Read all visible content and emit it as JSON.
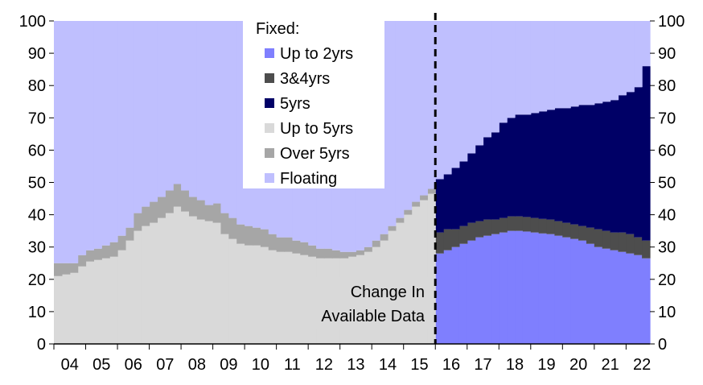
{
  "chart_data": {
    "type": "area",
    "stacked": true,
    "ylim": [
      0,
      100
    ],
    "y_ticks": [
      "0",
      "10",
      "20",
      "30",
      "40",
      "50",
      "60",
      "70",
      "80",
      "90",
      "100"
    ],
    "right_y_ticks": [
      "0",
      "10",
      "20",
      "30",
      "40",
      "50",
      "60",
      "70",
      "80",
      "90",
      "100"
    ],
    "x_tick_labels": [
      "04",
      "05",
      "06",
      "07",
      "08",
      "09",
      "10",
      "11",
      "12",
      "13",
      "14",
      "15",
      "16",
      "17",
      "18",
      "19",
      "20",
      "21",
      "22"
    ],
    "x": [
      2004.0,
      2004.25,
      2004.5,
      2004.75,
      2005.0,
      2005.25,
      2005.5,
      2005.75,
      2006.0,
      2006.25,
      2006.5,
      2006.75,
      2007.0,
      2007.25,
      2007.5,
      2007.75,
      2008.0,
      2008.25,
      2008.5,
      2008.75,
      2009.0,
      2009.25,
      2009.5,
      2009.75,
      2010.0,
      2010.25,
      2010.5,
      2010.75,
      2011.0,
      2011.25,
      2011.5,
      2011.75,
      2012.0,
      2012.25,
      2012.5,
      2012.75,
      2013.0,
      2013.25,
      2013.5,
      2013.75,
      2014.0,
      2014.25,
      2014.5,
      2014.75,
      2015.0,
      2015.25,
      2015.5,
      2015.75,
      2016.0,
      2016.25,
      2016.5,
      2016.75,
      2017.0,
      2017.25,
      2017.5,
      2017.75,
      2018.0,
      2018.25,
      2018.5,
      2018.75,
      2019.0,
      2019.25,
      2019.5,
      2019.75,
      2020.0,
      2020.25,
      2020.5,
      2020.75,
      2021.0,
      2021.25,
      2021.5,
      2021.75,
      2022.0,
      2022.25,
      2022.5
    ],
    "series": [
      {
        "name": "Up to 2yrs",
        "color": "#7f7ffe",
        "values": [
          0,
          0,
          0,
          0,
          0,
          0,
          0,
          0,
          0,
          0,
          0,
          0,
          0,
          0,
          0,
          0,
          0,
          0,
          0,
          0,
          0,
          0,
          0,
          0,
          0,
          0,
          0,
          0,
          0,
          0,
          0,
          0,
          0,
          0,
          0,
          0,
          0,
          0,
          0,
          0,
          0,
          0,
          0,
          0,
          0,
          0,
          0,
          0,
          28,
          29,
          30,
          31,
          32,
          33,
          33.5,
          34,
          34.5,
          35,
          35,
          34.8,
          34.5,
          34.2,
          34,
          33.5,
          33,
          32.5,
          32,
          31,
          30,
          29.5,
          29,
          28.5,
          28,
          27.5,
          26.5
        ]
      },
      {
        "name": "3&4yrs",
        "color": "#4d4d4d",
        "values": [
          0,
          0,
          0,
          0,
          0,
          0,
          0,
          0,
          0,
          0,
          0,
          0,
          0,
          0,
          0,
          0,
          0,
          0,
          0,
          0,
          0,
          0,
          0,
          0,
          0,
          0,
          0,
          0,
          0,
          0,
          0,
          0,
          0,
          0,
          0,
          0,
          0,
          0,
          0,
          0,
          0,
          0,
          0,
          0,
          0,
          0,
          0,
          0,
          6.5,
          6.5,
          5.5,
          5.5,
          5.5,
          5,
          5,
          4.5,
          4.5,
          4.5,
          4.5,
          4.5,
          4.5,
          4.5,
          4.5,
          4.5,
          4.5,
          4.5,
          4.5,
          5,
          5.5,
          5.5,
          5.5,
          6,
          6,
          5.5,
          5.5
        ]
      },
      {
        "name": "5yrs",
        "color": "#000066",
        "values": [
          0,
          0,
          0,
          0,
          0,
          0,
          0,
          0,
          0,
          0,
          0,
          0,
          0,
          0,
          0,
          0,
          0,
          0,
          0,
          0,
          0,
          0,
          0,
          0,
          0,
          0,
          0,
          0,
          0,
          0,
          0,
          0,
          0,
          0,
          0,
          0,
          0,
          0,
          0,
          0,
          0,
          0,
          0,
          0,
          0,
          0,
          0,
          0,
          16.5,
          17,
          19,
          20,
          21.5,
          23.5,
          25.5,
          27,
          29.5,
          30.5,
          31.5,
          31.7,
          32.5,
          33.3,
          34,
          35,
          35.5,
          36.5,
          37.5,
          38,
          39,
          40,
          41,
          42.5,
          44,
          46.5,
          54
        ]
      },
      {
        "name": "Up to 5yrs",
        "color": "#d9d9d9",
        "values": [
          21,
          21.5,
          22,
          24,
          25.5,
          26,
          26.5,
          27,
          29,
          32,
          35,
          36.5,
          37.5,
          39,
          40.5,
          42.5,
          41,
          39.5,
          38.5,
          38,
          37.5,
          34,
          32.5,
          31,
          30.5,
          30.5,
          30,
          29,
          28.5,
          28.5,
          28,
          27.5,
          27,
          26.5,
          26.5,
          26.5,
          26.5,
          27,
          27.5,
          28.5,
          30,
          32,
          35,
          37.5,
          40,
          42.5,
          44.5,
          46.5,
          0,
          0,
          0,
          0,
          0,
          0,
          0,
          0,
          0,
          0,
          0,
          0,
          0,
          0,
          0,
          0,
          0,
          0,
          0,
          0,
          0,
          0,
          0,
          0,
          0,
          0,
          0
        ]
      },
      {
        "name": "Over 5yrs",
        "color": "#a6a6a6",
        "values": [
          4,
          3.5,
          3,
          3.5,
          3.5,
          3.5,
          4,
          4.5,
          4.5,
          4,
          5.5,
          6,
          6.5,
          6.5,
          7,
          7,
          6.5,
          6,
          6,
          5,
          6,
          6.5,
          6.5,
          6,
          6,
          5.5,
          5.5,
          5,
          4.5,
          4.5,
          4,
          4,
          3.5,
          3,
          3,
          2.5,
          2,
          1.5,
          1.5,
          1.5,
          2,
          2,
          1.5,
          1.5,
          1.5,
          1.5,
          1.5,
          1.5,
          0,
          0,
          0,
          0,
          0,
          0,
          0,
          0,
          0,
          0,
          0,
          0,
          0,
          0,
          0,
          0,
          0,
          0,
          0,
          0,
          0,
          0,
          0,
          0,
          0,
          0,
          0
        ]
      },
      {
        "name": "Floating",
        "color": "#bfbffe",
        "values": [
          75,
          75,
          75,
          72.5,
          71,
          70.5,
          69.5,
          68.5,
          66.5,
          64,
          59.5,
          57.5,
          56,
          54.5,
          52.5,
          50.5,
          52.5,
          54.5,
          55.5,
          57,
          56.5,
          59.5,
          61,
          63,
          63.5,
          64,
          64.5,
          66,
          67,
          67,
          68,
          68.5,
          69.5,
          70.5,
          70.5,
          71,
          71.5,
          71.5,
          71,
          70,
          68,
          66,
          63.5,
          61,
          58.5,
          56,
          54,
          52,
          49,
          47.5,
          45.5,
          43.5,
          41,
          38.5,
          36,
          34.5,
          31.5,
          30,
          29,
          29,
          28.5,
          28,
          27.5,
          27,
          27,
          26.5,
          26,
          26,
          25.5,
          25,
          24.5,
          23,
          22,
          20.5,
          14
        ]
      }
    ],
    "legend": {
      "title": "Fixed:",
      "position": "top-center",
      "items": [
        "Up to 2yrs",
        "3&4yrs",
        "5yrs",
        "Up to 5yrs",
        "Over 5yrs",
        "Floating"
      ]
    },
    "annotation": {
      "lines": [
        "Change In",
        "Available Data"
      ],
      "at_x": 2016.0
    },
    "grid": false
  }
}
